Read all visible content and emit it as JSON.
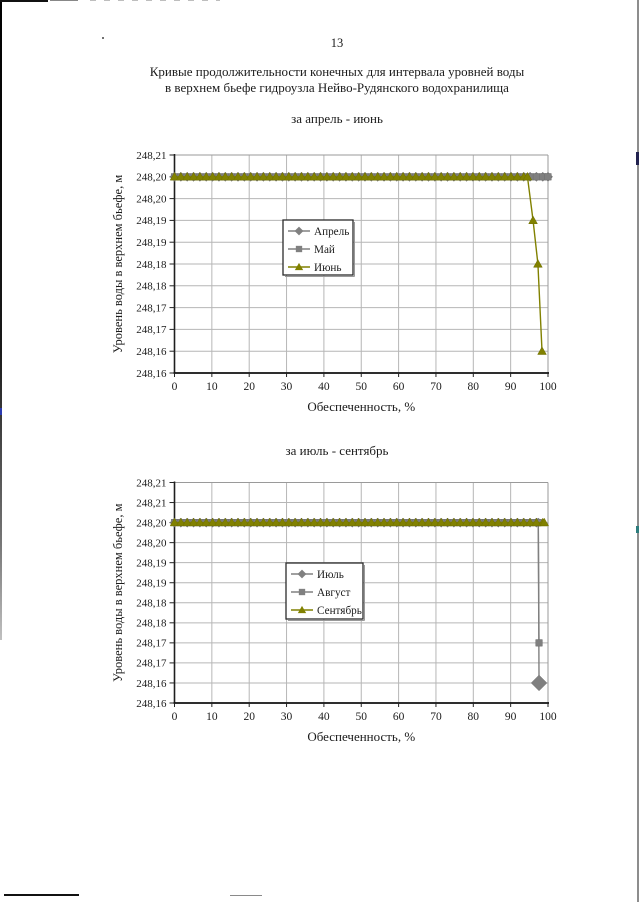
{
  "page": {
    "number": "13",
    "title_line1": "Кривые продолжительности конечных для интервала уровней воды",
    "title_line2": "в верхнем бьефе гидроузла Нейво-Рудянского водохранилища"
  },
  "chart_data": [
    {
      "type": "line",
      "title": "за апрель - июнь",
      "xlabel": "Обеспеченность, %",
      "ylabel": "Уровень воды в верхнем бьефе, м",
      "xlim": [
        0,
        100
      ],
      "x_ticks": [
        0,
        10,
        20,
        30,
        40,
        50,
        60,
        70,
        80,
        90,
        100
      ],
      "ylim": [
        248.16,
        248.21
      ],
      "y_tick_labels_top_down": [
        "248,21",
        "248,20",
        "248,20",
        "248,19",
        "248,19",
        "248,18",
        "248,18",
        "248,17",
        "248,17",
        "248,16",
        "248,16"
      ],
      "grid": true,
      "legend_position": "center",
      "marker_step": 1.7,
      "series": [
        {
          "name": "Апрель",
          "color": "#808080",
          "marker": "diamond",
          "flat": {
            "y": 248.205,
            "x_from": 0,
            "x_to": 100
          },
          "tail": []
        },
        {
          "name": "Май",
          "color": "#808080",
          "marker": "square",
          "flat": {
            "y": 248.205,
            "x_from": 0,
            "x_to": 100
          },
          "tail": []
        },
        {
          "name": "Июнь",
          "color": "#818100",
          "marker": "triangle",
          "flat": {
            "y": 248.205,
            "x_from": 0,
            "x_to": 94.5
          },
          "tail": [
            [
              96,
              248.195
            ],
            [
              97.3,
              248.185
            ],
            [
              98.4,
              248.165
            ]
          ]
        }
      ]
    },
    {
      "type": "line",
      "title": "за июль - сентябрь",
      "xlabel": "Обеспеченность, %",
      "ylabel": "Уровень воды в верхнем бьефе, м",
      "xlim": [
        0,
        100
      ],
      "x_ticks": [
        0,
        10,
        20,
        30,
        40,
        50,
        60,
        70,
        80,
        90,
        100
      ],
      "ylim": [
        248.16,
        248.215
      ],
      "y_tick_labels_top_down": [
        "248,21",
        "248,21",
        "248,20",
        "248,20",
        "248,19",
        "248,19",
        "248,18",
        "248,18",
        "248,17",
        "248,17",
        "248,16",
        "248,16"
      ],
      "grid": true,
      "legend_position": "center",
      "marker_step": 1.7,
      "series": [
        {
          "name": "Июль",
          "color": "#808080",
          "marker": "diamond",
          "flat": {
            "y": 248.205,
            "x_from": 0,
            "x_to": 97.4
          },
          "tail": [
            [
              97.6,
              248.165
            ]
          ],
          "last_marker_scale": 1.7
        },
        {
          "name": "Август",
          "color": "#808080",
          "marker": "square",
          "flat": {
            "y": 248.205,
            "x_from": 0,
            "x_to": 97.4
          },
          "tail": [
            [
              97.6,
              248.175
            ]
          ]
        },
        {
          "name": "Сентябрь",
          "color": "#818100",
          "marker": "triangle",
          "flat": {
            "y": 248.205,
            "x_from": 0,
            "x_to": 99
          },
          "tail": []
        }
      ]
    }
  ]
}
